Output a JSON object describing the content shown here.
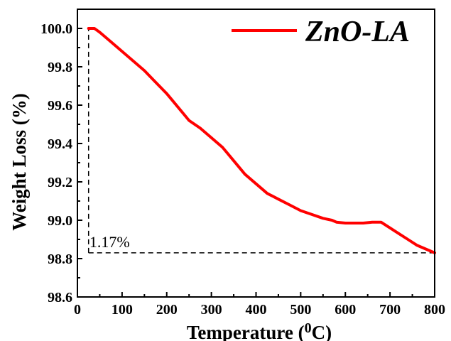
{
  "chart_data": {
    "type": "line",
    "xlabel_main": "Temperature (",
    "xlabel_sup": "0",
    "xlabel_end": "C)",
    "ylabel": "Weight Loss (%)",
    "xlim": [
      0,
      800
    ],
    "ylim": [
      98.6,
      100.1
    ],
    "x_ticks": [
      "0",
      "100",
      "200",
      "300",
      "400",
      "500",
      "600",
      "700",
      "800"
    ],
    "x_tick_values": [
      0,
      100,
      200,
      300,
      400,
      500,
      600,
      700,
      800
    ],
    "y_ticks": [
      "98.6",
      "98.8",
      "99.0",
      "99.2",
      "99.4",
      "99.6",
      "99.8",
      "100.0"
    ],
    "y_tick_values": [
      98.6,
      98.8,
      99.0,
      99.2,
      99.4,
      99.6,
      99.8,
      100.0
    ],
    "grid": false,
    "legend_position": "top-right",
    "series": [
      {
        "name": "ZnO-LA",
        "color": "#ff0000",
        "x": [
          25,
          38,
          50,
          75,
          100,
          125,
          150,
          175,
          200,
          225,
          250,
          275,
          300,
          325,
          350,
          375,
          400,
          425,
          450,
          475,
          500,
          525,
          550,
          570,
          580,
          600,
          620,
          640,
          660,
          680,
          700,
          720,
          740,
          760,
          780,
          800
        ],
        "y": [
          100.0,
          100.0,
          99.98,
          99.93,
          99.88,
          99.83,
          99.78,
          99.72,
          99.66,
          99.59,
          99.52,
          99.48,
          99.43,
          99.38,
          99.31,
          99.24,
          99.19,
          99.14,
          99.11,
          99.08,
          99.05,
          99.03,
          99.01,
          99.0,
          98.99,
          98.985,
          98.985,
          98.985,
          98.99,
          98.99,
          98.96,
          98.93,
          98.9,
          98.87,
          98.85,
          98.83
        ]
      }
    ],
    "annotations": [
      {
        "text": "1.17%",
        "x": 30,
        "y": 98.86
      }
    ],
    "reference_lines": [
      {
        "orientation": "vertical",
        "x": 25,
        "y_from": 98.83,
        "y_to": 100.0,
        "style": "dashed"
      },
      {
        "orientation": "horizontal",
        "y": 98.83,
        "x_from": 25,
        "x_to": 800,
        "style": "dashed"
      }
    ]
  }
}
